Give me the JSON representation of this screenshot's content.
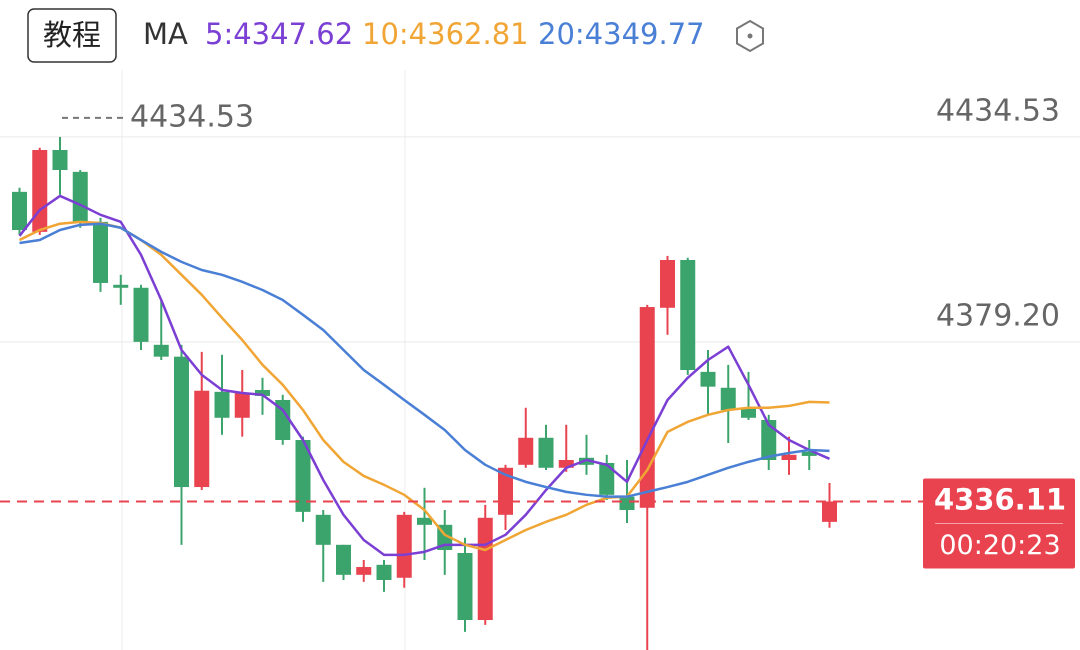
{
  "toolbar": {
    "button": "教程"
  },
  "chart_data": {
    "type": "candlestick",
    "indicator": "MA",
    "ylim": [
      4296.0,
      4471.5
    ],
    "yticks": [
      {
        "value": 4434.53,
        "label": "4434.53"
      },
      {
        "value": 4379.2,
        "label": "4379.20"
      }
    ],
    "grid": true,
    "up_color": "#e8434f",
    "down_color": "#3ba46c",
    "high_marker": 4434.53,
    "last_price": 4336.11,
    "countdown": "00:20:23",
    "open": [
      4419.7,
      4408.9,
      4431.0,
      4425.1,
      4411.6,
      4394.6,
      4393.8,
      4378.4,
      4375.2,
      4340.0,
      4365.7,
      4358.7,
      4366.2,
      4363.5,
      4352.7,
      4332.5,
      4324.4,
      4316.3,
      4319.0,
      4315.5,
      4331.7,
      4329.8,
      4322.2,
      4304.1,
      4332.5,
      4346.0,
      4353.3,
      4345.2,
      4347.9,
      4346.5,
      4337.4,
      4334.4,
      4388.4,
      4401.3,
      4371.1,
      4366.8,
      4361.4,
      4358.1,
      4347.3,
      4349.5,
      4330.6
    ],
    "high": [
      4420.8,
      4431.6,
      4434.53,
      4425.6,
      4412.7,
      4397.3,
      4394.6,
      4390.5,
      4378.4,
      4376.5,
      4375.7,
      4371.6,
      4369.5,
      4364.9,
      4353.6,
      4333.8,
      4324.4,
      4320.3,
      4320.3,
      4333.3,
      4339.8,
      4333.8,
      4326.3,
      4335.2,
      4346.0,
      4361.4,
      4356.8,
      4356.8,
      4354.1,
      4348.7,
      4347.3,
      4389.2,
      4402.4,
      4401.9,
      4377.0,
      4373.0,
      4371.1,
      4359.5,
      4353.6,
      4352.7,
      4341.1
    ],
    "low": [
      4408.1,
      4408.1,
      4418.9,
      4410.0,
      4392.7,
      4389.2,
      4377.0,
      4374.3,
      4324.4,
      4339.2,
      4354.1,
      4353.6,
      4359.5,
      4351.4,
      4330.6,
      4314.4,
      4314.9,
      4314.4,
      4311.7,
      4312.8,
      4320.3,
      4316.3,
      4300.9,
      4302.8,
      4328.4,
      4345.2,
      4344.6,
      4344.1,
      4343.3,
      4336.5,
      4330.3,
      4296.0,
      4381.1,
      4370.3,
      4359.5,
      4351.9,
      4358.1,
      4344.6,
      4343.3,
      4344.6,
      4329.0
    ],
    "close": [
      4409.4,
      4431.0,
      4425.6,
      4411.6,
      4395.1,
      4393.8,
      4379.2,
      4375.2,
      4340.0,
      4366.0,
      4358.7,
      4365.4,
      4364.6,
      4352.7,
      4333.3,
      4324.4,
      4316.3,
      4318.4,
      4314.9,
      4332.5,
      4329.8,
      4323.0,
      4304.1,
      4331.7,
      4345.2,
      4353.3,
      4345.2,
      4347.3,
      4346.0,
      4337.9,
      4333.8,
      4388.6,
      4401.3,
      4371.6,
      4367.1,
      4360.8,
      4358.7,
      4347.3,
      4348.7,
      4348.4,
      4336.11
    ],
    "series": [
      {
        "name": "5:4347.62",
        "color": "#7b3fd4",
        "values": [
          4407.8,
          4414.8,
          4418.6,
          4416.2,
          4413.5,
          4411.6,
          4402.7,
          4390.5,
          4377.0,
          4370.3,
          4366.2,
          4365.4,
          4364.9,
          4360.8,
          4352.7,
          4341.9,
          4332.5,
          4325.7,
          4321.7,
          4321.7,
          4322.5,
          4324.4,
          4324.4,
          4324.4,
          4327.1,
          4332.5,
          4339.2,
          4345.2,
          4347.3,
          4346.0,
          4341.4,
          4352.7,
          4363.5,
          4369.5,
          4374.3,
          4377.9,
          4367.6,
          4356.8,
          4352.7,
          4350.0,
          4347.62
        ]
      },
      {
        "name": "10:4362.81",
        "color": "#f0a534",
        "values": [
          4406.7,
          4409.4,
          4411.1,
          4411.6,
          4411.3,
          4410.0,
          4406.7,
          4402.7,
          4397.3,
          4391.9,
          4385.7,
          4379.7,
          4373.0,
          4367.6,
          4360.8,
          4352.7,
          4346.8,
          4343.0,
          4340.6,
          4337.9,
          4333.8,
          4327.1,
          4324.4,
          4323.0,
          4325.7,
          4328.4,
          4330.6,
          4332.5,
          4335.2,
          4337.1,
          4337.4,
          4344.6,
          4354.9,
          4357.6,
          4359.5,
          4360.8,
          4361.4,
          4361.4,
          4361.9,
          4363.0,
          4362.81
        ]
      },
      {
        "name": "20:4349.77",
        "color": "#4a7fd6",
        "values": [
          4405.9,
          4406.7,
          4409.4,
          4410.8,
          4411.1,
          4410.0,
          4406.7,
          4403.5,
          4400.8,
          4398.6,
          4397.3,
          4395.4,
          4393.2,
          4390.5,
          4386.5,
          4382.4,
          4377.0,
          4371.6,
          4367.6,
          4363.5,
          4359.5,
          4355.4,
          4350.0,
          4346.0,
          4343.3,
          4341.4,
          4340.0,
          4338.7,
          4337.9,
          4337.4,
          4337.4,
          4338.7,
          4340.0,
          4341.4,
          4343.3,
          4345.2,
          4346.8,
          4348.2,
          4349.2,
          4350.0,
          4349.77
        ]
      }
    ]
  }
}
